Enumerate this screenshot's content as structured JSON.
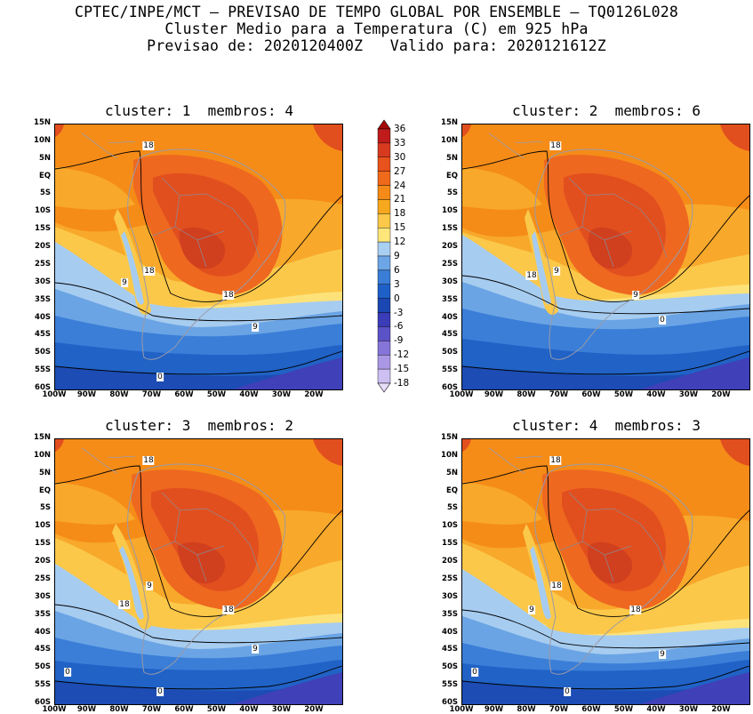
{
  "header": {
    "line1": "CPTEC/INPE/MCT – PREVISAO DE TEMPO GLOBAL POR ENSEMBLE – TQ0126L028",
    "line2": "Cluster Medio para a Temperatura (C) em 925 hPa",
    "line3": "Previsao de: 2020120400Z   Valido para: 2020121612Z"
  },
  "panels": [
    {
      "title": "cluster: 1  membros: 4",
      "labels": [
        "18",
        "18",
        "9",
        "18",
        "9",
        "0"
      ]
    },
    {
      "title": "cluster: 2  membros: 6",
      "labels": [
        "18",
        "9",
        "18",
        "9",
        "0"
      ]
    },
    {
      "title": "cluster: 3  membros: 2",
      "labels": [
        "18",
        "9",
        "18",
        "18",
        "9",
        "0",
        "0"
      ]
    },
    {
      "title": "cluster: 4  membros: 3",
      "labels": [
        "18",
        "18",
        "9",
        "18",
        "9",
        "0",
        "0"
      ]
    }
  ],
  "axes": {
    "lat": [
      "15N",
      "10N",
      "5N",
      "EQ",
      "5S",
      "10S",
      "15S",
      "20S",
      "25S",
      "30S",
      "35S",
      "40S",
      "45S",
      "50S",
      "55S",
      "60S"
    ],
    "lon": [
      "100W",
      "90W",
      "80W",
      "70W",
      "60W",
      "50W",
      "40W",
      "30W",
      "20W"
    ]
  },
  "colorbar": {
    "labels": [
      "36",
      "33",
      "30",
      "27",
      "24",
      "21",
      "18",
      "15",
      "12",
      "9",
      "6",
      "3",
      "0",
      "-3",
      "-6",
      "-9",
      "-12",
      "-15",
      "-18"
    ],
    "colors": [
      "#a50a0a",
      "#c01c1c",
      "#d83a20",
      "#e8521c",
      "#f06a1c",
      "#f58a18",
      "#f8a81e",
      "#fbc84a",
      "#fde67a",
      "#a9cff2",
      "#6ca6e6",
      "#3a7ed8",
      "#1f5fc8",
      "#1b47b2",
      "#3a3cb8",
      "#5c52c8",
      "#8575d8",
      "#aa98e6",
      "#cdbff2",
      "#e7defa"
    ]
  }
}
